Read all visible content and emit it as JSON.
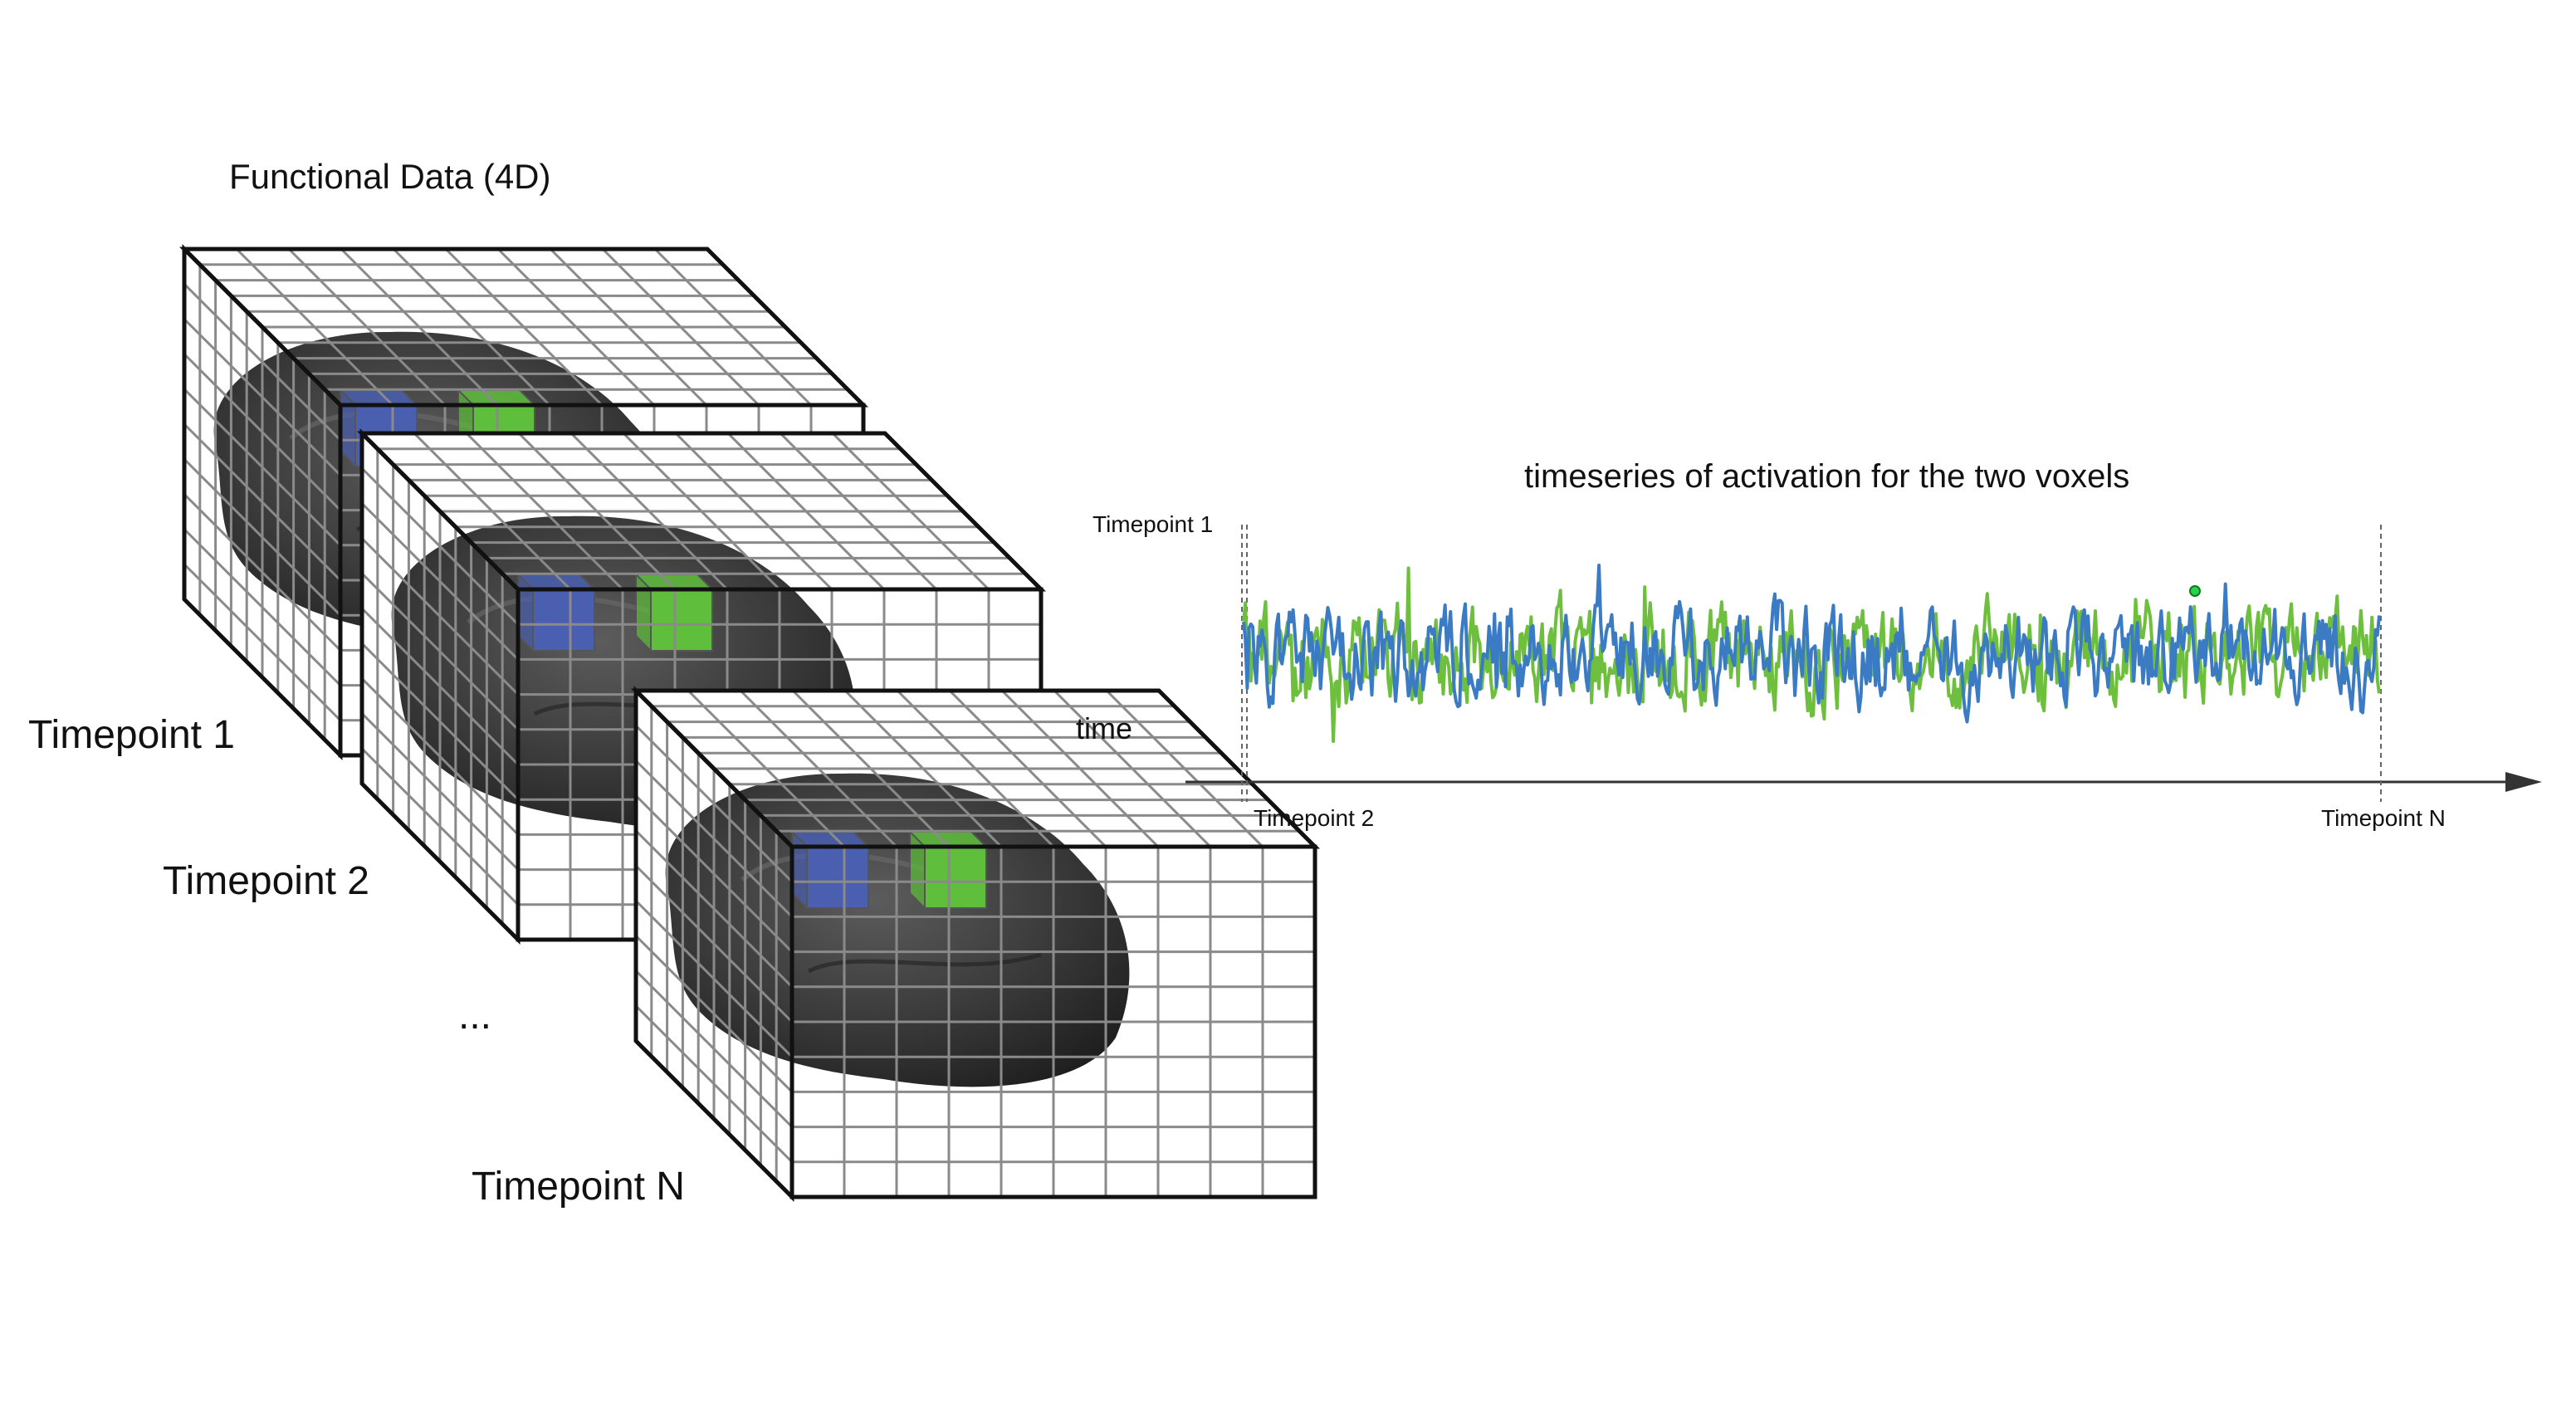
{
  "labels": {
    "title": "Functional Data (4D)",
    "timepoint_1": "Timepoint 1",
    "timepoint_2": "Timepoint 2",
    "ellipsis": "...",
    "timepoint_n": "Timepoint N",
    "time_axis": "time"
  },
  "timeseries": {
    "title": "timeseries of activation for the two voxels",
    "marker_start": "Timepoint 1",
    "marker_second": "Timepoint 2",
    "marker_end": "Timepoint N"
  },
  "colors": {
    "voxel_a": "#4a5fb0",
    "voxel_b": "#5fbf3c",
    "series_a": "#3a7bc4",
    "series_b": "#6fbf3f",
    "grid": "#8a8a8a",
    "frame": "#111111",
    "brain": "#3a3a3a"
  }
}
